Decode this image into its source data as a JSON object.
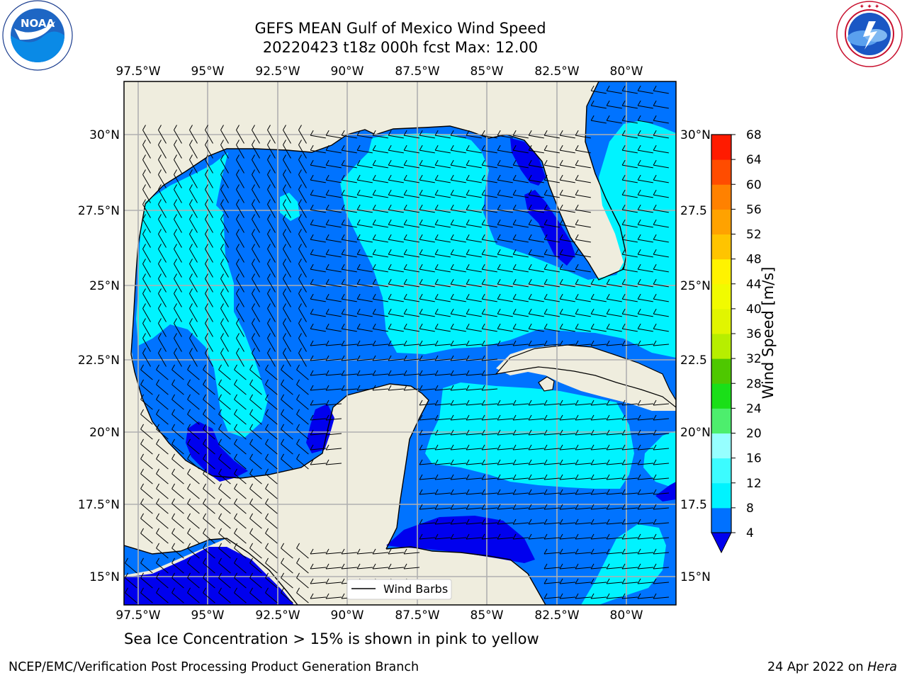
{
  "title": {
    "line1": "GEFS MEAN Gulf of Mexico Wind Speed",
    "line2": "20220423 t18z 000h fcst   Max: 12.00"
  },
  "logos": {
    "left": "NOAA",
    "left_ring_text": "NATIONAL OCEANIC AND ATMOSPHERIC ADMINISTRATION · U.S. DEPARTMENT OF COMMERCE",
    "right_ring_text": "NATIONAL WEATHER SERVICE"
  },
  "map": {
    "lon_ticks": [
      "97.5°W",
      "95°W",
      "92.5°W",
      "90°W",
      "87.5°W",
      "85°W",
      "82.5°W",
      "80°W"
    ],
    "lat_ticks": [
      "30°N",
      "27.5°N",
      "25°N",
      "22.5°N",
      "20°N",
      "17.5°N",
      "15°N"
    ],
    "lat_ticks_right": [
      "30°N",
      "27.5",
      "25°N",
      "22.5",
      "20°N",
      "17.5",
      "15°N"
    ],
    "legend": "Wind Barbs",
    "land_color": "#efedde",
    "ocean_color": "#0073ff"
  },
  "colorbar": {
    "title": "Wind Speed [m/s]",
    "levels": [
      "4",
      "8",
      "12",
      "16",
      "20",
      "24",
      "28",
      "32",
      "36",
      "40",
      "44",
      "48",
      "52",
      "56",
      "60",
      "64",
      "68"
    ],
    "colors": [
      "#0071ff",
      "#00f3ff",
      "#3cfcff",
      "#96ffff",
      "#4dee6d",
      "#1adf18",
      "#4ec800",
      "#b7ee00",
      "#e1f500",
      "#f1fb00",
      "#fff300",
      "#ffc400",
      "#ffa200",
      "#ff8100",
      "#ff4c00",
      "#ff1b00"
    ],
    "under_color": "#0000ee"
  },
  "subtitle": "Sea Ice Concentration > 15% is shown in pink to yellow",
  "footer": {
    "left": "NCEP/EMC/Verification Post Processing Product Generation Branch",
    "right_prefix": "24 Apr 2022 on ",
    "right_machine": "Hera"
  }
}
